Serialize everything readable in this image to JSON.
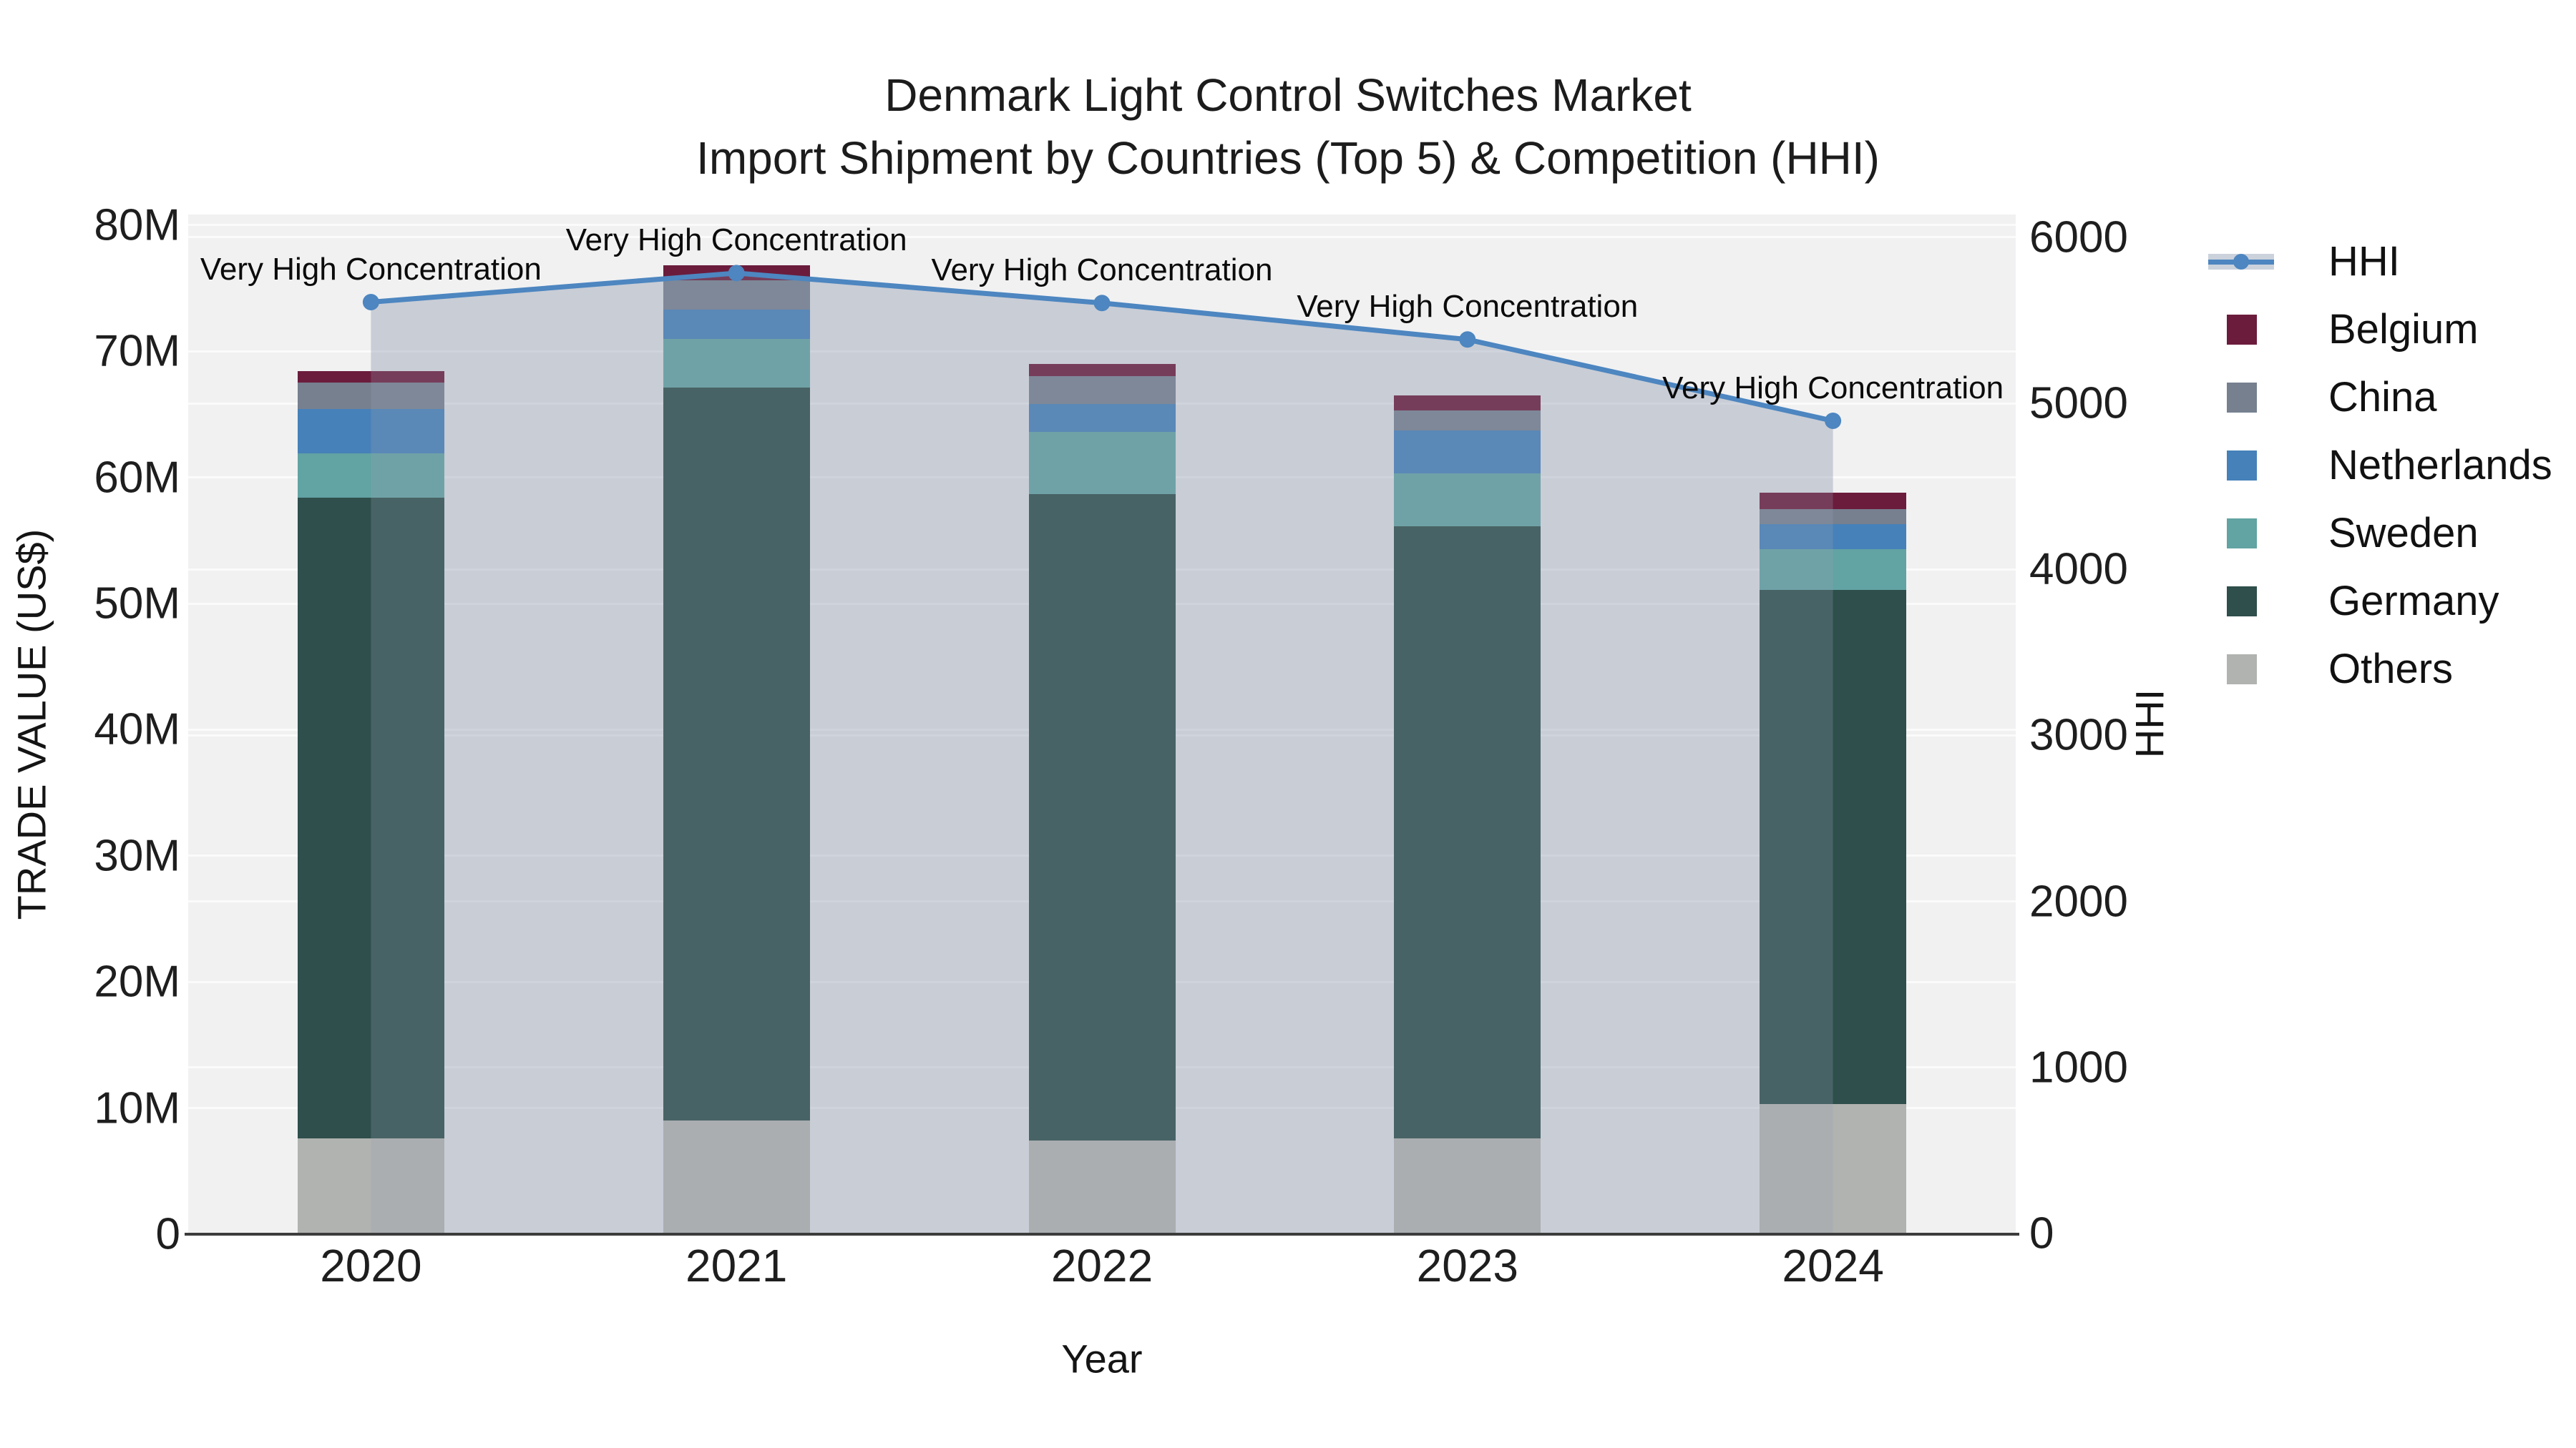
{
  "title": {
    "line1": "Denmark Light Control Switches Market",
    "line2": "Import Shipment by Countries (Top 5) & Competition (HHI)"
  },
  "chart_data": {
    "type": "bar",
    "subtype": "stacked-bars-with-dual-axis-line",
    "categories": [
      "2020",
      "2021",
      "2022",
      "2023",
      "2024"
    ],
    "value_unit": "US$ millions",
    "series": [
      {
        "name": "Others",
        "color": "#B0B3B0",
        "values": [
          7.6,
          9.0,
          7.4,
          7.6,
          10.3
        ]
      },
      {
        "name": "Germany",
        "color": "#2E4F4B",
        "values": [
          50.8,
          58.1,
          51.3,
          48.5,
          40.8
        ]
      },
      {
        "name": "Sweden",
        "color": "#62A3A3",
        "values": [
          3.5,
          3.9,
          4.9,
          4.2,
          3.2
        ]
      },
      {
        "name": "Netherlands",
        "color": "#4681B9",
        "values": [
          3.5,
          2.3,
          2.2,
          3.4,
          2.0
        ]
      },
      {
        "name": "China",
        "color": "#76808F",
        "values": [
          2.1,
          2.3,
          2.2,
          1.6,
          1.2
        ]
      },
      {
        "name": "Belgium",
        "color": "#6B1C3C",
        "values": [
          0.9,
          1.2,
          1.0,
          1.2,
          1.3
        ]
      }
    ],
    "stacked_totals": [
      68.4,
      76.8,
      69.0,
      66.5,
      58.8
    ],
    "line_series": {
      "name": "HHI",
      "color": "#4D86C0",
      "area_overlay_color": "rgba(150,160,180,0.25)",
      "values": [
        5610,
        5785,
        5605,
        5385,
        4895
      ]
    },
    "annotations": [
      "Very High Concentration",
      "Very High Concentration",
      "Very High Concentration",
      "Very High Concentration",
      "Very High Concentration"
    ],
    "y_left": {
      "title": "TRADE VALUE (US$)",
      "tick_values": [
        0,
        10,
        20,
        30,
        40,
        50,
        60,
        70,
        80
      ],
      "tick_labels": [
        "0",
        "10M",
        "20M",
        "30M",
        "40M",
        "50M",
        "60M",
        "70M",
        "80M"
      ],
      "range_m": [
        0,
        80.9
      ],
      "grid": true
    },
    "y_right": {
      "title": "HHI",
      "tick_values": [
        0,
        1000,
        2000,
        3000,
        4000,
        5000,
        6000
      ],
      "tick_labels": [
        "0",
        "1000",
        "2000",
        "3000",
        "4000",
        "5000",
        "6000"
      ],
      "range": [
        0,
        6140
      ],
      "grid": true
    },
    "x_axis": {
      "title": "Year"
    },
    "legend": {
      "position": "right",
      "entries": [
        {
          "label": "HHI",
          "type": "line",
          "color": "#4D86C0"
        },
        {
          "label": "Belgium",
          "type": "swatch",
          "color": "#6B1C3C"
        },
        {
          "label": "China",
          "type": "swatch",
          "color": "#76808F"
        },
        {
          "label": "Netherlands",
          "type": "swatch",
          "color": "#4681B9"
        },
        {
          "label": "Sweden",
          "type": "swatch",
          "color": "#62A3A3"
        },
        {
          "label": "Germany",
          "type": "swatch",
          "color": "#2E4F4B"
        },
        {
          "label": "Others",
          "type": "swatch",
          "color": "#B0B3B0"
        }
      ]
    },
    "colors": {
      "plot_background": "#F1F1F2",
      "gridline": "#FBFBFC",
      "axis_spine": "#3C3C3C",
      "text": "#111111"
    }
  }
}
